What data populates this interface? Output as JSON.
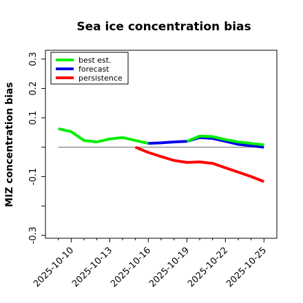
{
  "chart_data": {
    "type": "line",
    "title": "Sea ice concentration bias",
    "xlabel": "",
    "ylabel": "MIZ concentration bias",
    "xlim": [
      "2025-10-08",
      "2025-10-26"
    ],
    "ylim": [
      -0.31,
      0.33
    ],
    "yticks": [
      0.3,
      0.2,
      0.1,
      -0.1,
      -0.3
    ],
    "ytick_labels": [
      "0.3",
      "0.2",
      "0.1",
      "-0.1",
      "-0.3"
    ],
    "yminor": [
      0.0,
      -0.2
    ],
    "xticks": [
      "2025-10-10",
      "2025-10-13",
      "2025-10-16",
      "2025-10-19",
      "2025-10-22",
      "2025-10-25"
    ],
    "xtick_colors": [
      "#000000",
      "#000000",
      "#228B22",
      "#000000",
      "#000000",
      "#000000"
    ],
    "xminor": [
      "2025-10-09",
      "2025-10-11",
      "2025-10-12",
      "2025-10-14",
      "2025-10-15",
      "2025-10-17",
      "2025-10-18",
      "2025-10-20",
      "2025-10-21",
      "2025-10-23",
      "2025-10-24"
    ],
    "zero_line": {
      "y": 0.0,
      "from": "2025-10-09",
      "to": "2025-10-25",
      "color": "#808080"
    },
    "legend_position": "top-left",
    "series": [
      {
        "name": "best est.",
        "color": "#00ee00",
        "x": [
          "2025-10-09",
          "2025-10-10",
          "2025-10-11",
          "2025-10-12",
          "2025-10-13",
          "2025-10-14",
          "2025-10-15",
          "2025-10-16"
        ],
        "y": [
          0.063,
          0.053,
          0.023,
          0.018,
          0.028,
          0.033,
          0.023,
          0.013
        ]
      },
      {
        "name": "forecast",
        "color": "#0000ee",
        "x": [
          "2025-10-16",
          "2025-10-17",
          "2025-10-18",
          "2025-10-19",
          "2025-10-20",
          "2025-10-21",
          "2025-10-22",
          "2025-10-23",
          "2025-10-24",
          "2025-10-25"
        ],
        "y": [
          0.013,
          0.015,
          0.018,
          0.02,
          0.033,
          0.03,
          0.02,
          0.01,
          0.005,
          0.0
        ]
      },
      {
        "name": "best est.",
        "color": "#00ee00",
        "x": [
          "2025-10-19",
          "2025-10-20",
          "2025-10-21",
          "2025-10-22",
          "2025-10-23",
          "2025-10-24",
          "2025-10-25"
        ],
        "y": [
          0.02,
          0.038,
          0.036,
          0.026,
          0.018,
          0.013,
          0.008
        ]
      },
      {
        "name": "persistence",
        "color": "#ff0000",
        "x": [
          "2025-10-15",
          "2025-10-16",
          "2025-10-17",
          "2025-10-18",
          "2025-10-19",
          "2025-10-20",
          "2025-10-21",
          "2025-10-22",
          "2025-10-23",
          "2025-10-24",
          "2025-10-25"
        ],
        "y": [
          0.0,
          -0.018,
          -0.032,
          -0.045,
          -0.052,
          -0.05,
          -0.055,
          -0.07,
          -0.085,
          -0.1,
          -0.117
        ]
      }
    ],
    "legend": [
      {
        "label": "best est.",
        "color": "#00ee00"
      },
      {
        "label": "forecast",
        "color": "#0000ee"
      },
      {
        "label": "persistence",
        "color": "#ff0000"
      }
    ]
  }
}
